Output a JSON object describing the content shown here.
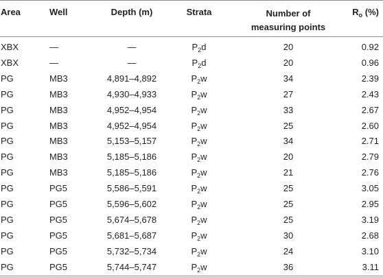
{
  "table": {
    "header": [
      "Area",
      "Well",
      "Depth (m)",
      "Strata",
      "Number of measuring points",
      {
        "base": "R",
        "sub": "o",
        "after": " (%)"
      }
    ],
    "rows": [
      [
        "XBX",
        "—",
        "—",
        {
          "base": "P",
          "sub": "2",
          "after": "d"
        },
        "20",
        "0.92"
      ],
      [
        "XBX",
        "—",
        "—",
        {
          "base": "P",
          "sub": "2",
          "after": "d"
        },
        "20",
        "0.96"
      ],
      [
        "PG",
        "MB3",
        "4,891–4,892",
        {
          "base": "P",
          "sub": "2",
          "after": "w"
        },
        "34",
        "2.39"
      ],
      [
        "PG",
        "MB3",
        "4,930–4,933",
        {
          "base": "P",
          "sub": "2",
          "after": "w"
        },
        "27",
        "2.43"
      ],
      [
        "PG",
        "MB3",
        "4,952–4,954",
        {
          "base": "P",
          "sub": "2",
          "after": "w"
        },
        "33",
        "2.67"
      ],
      [
        "PG",
        "MB3",
        "4,952–4,954",
        {
          "base": "P",
          "sub": "2",
          "after": "w"
        },
        "25",
        "2.60"
      ],
      [
        "PG",
        "MB3",
        "5,153–5,157",
        {
          "base": "P",
          "sub": "2",
          "after": "w"
        },
        "34",
        "2.71"
      ],
      [
        "PG",
        "MB3",
        "5,185–5,186",
        {
          "base": "P",
          "sub": "2",
          "after": "w"
        },
        "20",
        "2.79"
      ],
      [
        "PG",
        "MB3",
        "5,185–5,186",
        {
          "base": "P",
          "sub": "2",
          "after": "w"
        },
        "21",
        "2.76"
      ],
      [
        "PG",
        "PG5",
        "5,586–5,591",
        {
          "base": "P",
          "sub": "2",
          "after": "w"
        },
        "25",
        "3.05"
      ],
      [
        "PG",
        "PG5",
        "5,596–5,602",
        {
          "base": "P",
          "sub": "2",
          "after": "w"
        },
        "25",
        "2.95"
      ],
      [
        "PG",
        "PG5",
        "5,674–5,678",
        {
          "base": "P",
          "sub": "2",
          "after": "w"
        },
        "25",
        "3.19"
      ],
      [
        "PG",
        "PG5",
        "5,681–5,687",
        {
          "base": "P",
          "sub": "2",
          "after": "w"
        },
        "30",
        "2.68"
      ],
      [
        "PG",
        "PG5",
        "5,732–5,734",
        {
          "base": "P",
          "sub": "2",
          "after": "w"
        },
        "24",
        "3.10"
      ],
      [
        "PG",
        "PG5",
        "5,744–5,747",
        {
          "base": "P",
          "sub": "2",
          "after": "w"
        },
        "36",
        "3.11"
      ]
    ]
  }
}
